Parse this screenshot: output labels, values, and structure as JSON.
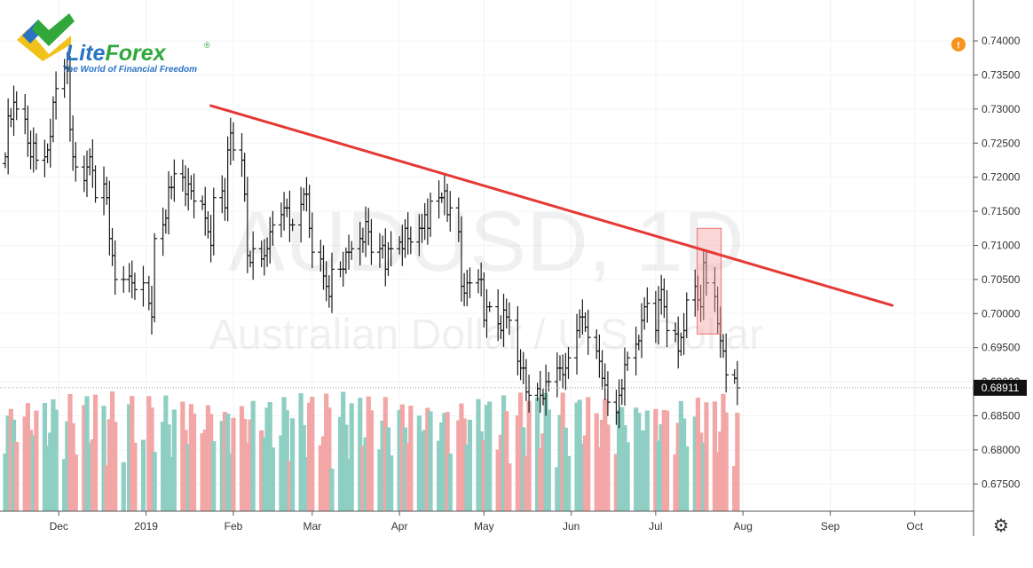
{
  "chart_data": {
    "type": "candlestick",
    "symbol": "AUDUSD, 1D",
    "instrument": "Australian Dollar / U.S. Dollar",
    "brand": {
      "name_part1": "Lite",
      "name_part2": "Forex",
      "registered": "®",
      "tagline": "The World of Financial Freedom",
      "colors": {
        "blue": "#2a73c2",
        "green": "#32a83c",
        "yellow": "#f2c21b"
      }
    },
    "y_axis": {
      "ylim": [
        0.671,
        0.746
      ],
      "ticks": [
        {
          "value": 0.675,
          "label": "0.67500"
        },
        {
          "value": 0.68,
          "label": "0.68000"
        },
        {
          "value": 0.685,
          "label": "0.68500"
        },
        {
          "value": 0.69,
          "label": "0.69000"
        },
        {
          "value": 0.695,
          "label": "0.69500"
        },
        {
          "value": 0.7,
          "label": "0.70000"
        },
        {
          "value": 0.705,
          "label": "0.70500"
        },
        {
          "value": 0.71,
          "label": "0.71000"
        },
        {
          "value": 0.715,
          "label": "0.71500"
        },
        {
          "value": 0.72,
          "label": "0.72000"
        },
        {
          "value": 0.725,
          "label": "0.72500"
        },
        {
          "value": 0.73,
          "label": "0.73000"
        },
        {
          "value": 0.735,
          "label": "0.73500"
        },
        {
          "value": 0.74,
          "label": "0.74000"
        }
      ]
    },
    "x_axis": {
      "ticks": [
        {
          "label": "Dec",
          "date": "2018-12-01"
        },
        {
          "label": "2019",
          "date": "2019-01-01"
        },
        {
          "label": "Feb",
          "date": "2019-02-01"
        },
        {
          "label": "Mar",
          "date": "2019-03-01"
        },
        {
          "label": "Apr",
          "date": "2019-04-01"
        },
        {
          "label": "May",
          "date": "2019-05-01"
        },
        {
          "label": "Jun",
          "date": "2019-06-01"
        },
        {
          "label": "Jul",
          "date": "2019-07-01"
        },
        {
          "label": "Aug",
          "date": "2019-08-01"
        },
        {
          "label": "Sep",
          "date": "2019-09-01"
        },
        {
          "label": "Oct",
          "date": "2019-10-01"
        }
      ],
      "xlim": [
        "2018-11-12",
        "2019-10-20"
      ]
    },
    "last_price": {
      "value": 0.68911,
      "label": "0.68911"
    },
    "trendline": {
      "start": {
        "date": "2019-01-24",
        "price": 0.7305
      },
      "end": {
        "date": "2019-09-23",
        "price": 0.7012
      },
      "color": "#e53935"
    },
    "highlight_box": {
      "start": "2019-07-17",
      "end": "2019-07-23",
      "low": 0.697,
      "high": 0.7125,
      "color": "#f4a4a4"
    },
    "alert_icon": {
      "name": "alert-icon",
      "symbol": "!",
      "color": "#f7931e"
    },
    "settings_icon": {
      "name": "gear-icon",
      "symbol": "⚙"
    },
    "volume_colors": {
      "up": "#8fcfc3",
      "down": "#f2a6a6"
    },
    "price_series": [
      {
        "d": "2018-11-12",
        "c": 0.723
      },
      {
        "d": "2018-11-13",
        "c": 0.729
      },
      {
        "d": "2018-11-14",
        "c": 0.7285
      },
      {
        "d": "2018-11-15",
        "c": 0.731
      },
      {
        "d": "2018-11-16",
        "c": 0.73
      },
      {
        "d": "2018-11-19",
        "c": 0.7285
      },
      {
        "d": "2018-11-20",
        "c": 0.725
      },
      {
        "d": "2018-11-21",
        "c": 0.723
      },
      {
        "d": "2018-11-22",
        "c": 0.725
      },
      {
        "d": "2018-11-23",
        "c": 0.7225
      },
      {
        "d": "2018-11-26",
        "c": 0.723
      },
      {
        "d": "2018-11-27",
        "c": 0.724
      },
      {
        "d": "2018-11-28",
        "c": 0.726
      },
      {
        "d": "2018-11-29",
        "c": 0.731
      },
      {
        "d": "2018-11-30",
        "c": 0.733
      },
      {
        "d": "2018-12-03",
        "c": 0.736
      },
      {
        "d": "2018-12-04",
        "c": 0.736
      },
      {
        "d": "2018-12-05",
        "c": 0.727
      },
      {
        "d": "2018-12-06",
        "c": 0.723
      },
      {
        "d": "2018-12-07",
        "c": 0.7215
      },
      {
        "d": "2018-12-10",
        "c": 0.7195
      },
      {
        "d": "2018-12-11",
        "c": 0.7215
      },
      {
        "d": "2018-12-12",
        "c": 0.723
      },
      {
        "d": "2018-12-13",
        "c": 0.721
      },
      {
        "d": "2018-12-14",
        "c": 0.717
      },
      {
        "d": "2018-12-17",
        "c": 0.719
      },
      {
        "d": "2018-12-18",
        "c": 0.717
      },
      {
        "d": "2018-12-19",
        "c": 0.711
      },
      {
        "d": "2018-12-20",
        "c": 0.7085
      },
      {
        "d": "2018-12-21",
        "c": 0.705
      },
      {
        "d": "2018-12-24",
        "c": 0.705
      },
      {
        "d": "2018-12-26",
        "c": 0.7055
      },
      {
        "d": "2018-12-27",
        "c": 0.7045
      },
      {
        "d": "2018-12-28",
        "c": 0.7035
      },
      {
        "d": "2018-12-31",
        "c": 0.7045
      },
      {
        "d": "2019-01-02",
        "c": 0.7015
      },
      {
        "d": "2019-01-03",
        "c": 0.6995
      },
      {
        "d": "2019-01-04",
        "c": 0.711
      },
      {
        "d": "2019-01-07",
        "c": 0.713
      },
      {
        "d": "2019-01-08",
        "c": 0.714
      },
      {
        "d": "2019-01-09",
        "c": 0.7185
      },
      {
        "d": "2019-01-10",
        "c": 0.7185
      },
      {
        "d": "2019-01-11",
        "c": 0.7205
      },
      {
        "d": "2019-01-14",
        "c": 0.72
      },
      {
        "d": "2019-01-15",
        "c": 0.7175
      },
      {
        "d": "2019-01-16",
        "c": 0.719
      },
      {
        "d": "2019-01-17",
        "c": 0.718
      },
      {
        "d": "2019-01-18",
        "c": 0.7165
      },
      {
        "d": "2019-01-21",
        "c": 0.716
      },
      {
        "d": "2019-01-22",
        "c": 0.714
      },
      {
        "d": "2019-01-23",
        "c": 0.712
      },
      {
        "d": "2019-01-24",
        "c": 0.71
      },
      {
        "d": "2019-01-25",
        "c": 0.717
      },
      {
        "d": "2019-01-28",
        "c": 0.718
      },
      {
        "d": "2019-01-29",
        "c": 0.7155
      },
      {
        "d": "2019-01-30",
        "c": 0.724
      },
      {
        "d": "2019-01-31",
        "c": 0.7265
      },
      {
        "d": "2019-02-01",
        "c": 0.724
      },
      {
        "d": "2019-02-04",
        "c": 0.7225
      },
      {
        "d": "2019-02-05",
        "c": 0.7175
      },
      {
        "d": "2019-02-06",
        "c": 0.7085
      },
      {
        "d": "2019-02-07",
        "c": 0.7075
      },
      {
        "d": "2019-02-08",
        "c": 0.7095
      },
      {
        "d": "2019-02-11",
        "c": 0.708
      },
      {
        "d": "2019-02-12",
        "c": 0.7085
      },
      {
        "d": "2019-02-13",
        "c": 0.7095
      },
      {
        "d": "2019-02-14",
        "c": 0.712
      },
      {
        "d": "2019-02-15",
        "c": 0.713
      },
      {
        "d": "2019-02-18",
        "c": 0.7145
      },
      {
        "d": "2019-02-19",
        "c": 0.7155
      },
      {
        "d": "2019-02-20",
        "c": 0.7155
      },
      {
        "d": "2019-02-21",
        "c": 0.713
      },
      {
        "d": "2019-02-22",
        "c": 0.713
      },
      {
        "d": "2019-02-25",
        "c": 0.716
      },
      {
        "d": "2019-02-26",
        "c": 0.7175
      },
      {
        "d": "2019-02-27",
        "c": 0.7175
      },
      {
        "d": "2019-02-28",
        "c": 0.7125
      },
      {
        "d": "2019-03-01",
        "c": 0.709
      },
      {
        "d": "2019-03-04",
        "c": 0.708
      },
      {
        "d": "2019-03-05",
        "c": 0.7055
      },
      {
        "d": "2019-03-06",
        "c": 0.704
      },
      {
        "d": "2019-03-07",
        "c": 0.7025
      },
      {
        "d": "2019-03-08",
        "c": 0.7065
      },
      {
        "d": "2019-03-11",
        "c": 0.7065
      },
      {
        "d": "2019-03-12",
        "c": 0.7065
      },
      {
        "d": "2019-03-13",
        "c": 0.709
      },
      {
        "d": "2019-03-14",
        "c": 0.709
      },
      {
        "d": "2019-03-15",
        "c": 0.7095
      },
      {
        "d": "2019-03-18",
        "c": 0.711
      },
      {
        "d": "2019-03-19",
        "c": 0.7105
      },
      {
        "d": "2019-03-20",
        "c": 0.7135
      },
      {
        "d": "2019-03-21",
        "c": 0.712
      },
      {
        "d": "2019-03-22",
        "c": 0.709
      },
      {
        "d": "2019-03-25",
        "c": 0.7095
      },
      {
        "d": "2019-03-26",
        "c": 0.71
      },
      {
        "d": "2019-03-27",
        "c": 0.7065
      },
      {
        "d": "2019-03-28",
        "c": 0.7095
      },
      {
        "d": "2019-03-29",
        "c": 0.7095
      },
      {
        "d": "2019-04-01",
        "c": 0.7105
      },
      {
        "d": "2019-04-02",
        "c": 0.7095
      },
      {
        "d": "2019-04-03",
        "c": 0.7125
      },
      {
        "d": "2019-04-04",
        "c": 0.711
      },
      {
        "d": "2019-04-05",
        "c": 0.7105
      },
      {
        "d": "2019-04-08",
        "c": 0.7125
      },
      {
        "d": "2019-04-09",
        "c": 0.7125
      },
      {
        "d": "2019-04-10",
        "c": 0.7145
      },
      {
        "d": "2019-04-11",
        "c": 0.7125
      },
      {
        "d": "2019-04-12",
        "c": 0.7165
      },
      {
        "d": "2019-04-15",
        "c": 0.717
      },
      {
        "d": "2019-04-16",
        "c": 0.717
      },
      {
        "d": "2019-04-17",
        "c": 0.718
      },
      {
        "d": "2019-04-18",
        "c": 0.7145
      },
      {
        "d": "2019-04-19",
        "c": 0.7155
      },
      {
        "d": "2019-04-22",
        "c": 0.712
      },
      {
        "d": "2019-04-23",
        "c": 0.704
      },
      {
        "d": "2019-04-24",
        "c": 0.703
      },
      {
        "d": "2019-04-25",
        "c": 0.7045
      },
      {
        "d": "2019-04-26",
        "c": 0.7045
      },
      {
        "d": "2019-04-29",
        "c": 0.705
      },
      {
        "d": "2019-04-30",
        "c": 0.705
      },
      {
        "d": "2019-05-01",
        "c": 0.699
      },
      {
        "d": "2019-05-02",
        "c": 0.701
      },
      {
        "d": "2019-05-03",
        "c": 0.701
      },
      {
        "d": "2019-05-06",
        "c": 0.6985
      },
      {
        "d": "2019-05-07",
        "c": 0.6975
      },
      {
        "d": "2019-05-08",
        "c": 0.7005
      },
      {
        "d": "2019-05-09",
        "c": 0.6995
      },
      {
        "d": "2019-05-10",
        "c": 0.699
      },
      {
        "d": "2019-05-13",
        "c": 0.693
      },
      {
        "d": "2019-05-14",
        "c": 0.692
      },
      {
        "d": "2019-05-15",
        "c": 0.692
      },
      {
        "d": "2019-05-16",
        "c": 0.6885
      },
      {
        "d": "2019-05-17",
        "c": 0.688
      },
      {
        "d": "2019-05-20",
        "c": 0.689
      },
      {
        "d": "2019-05-21",
        "c": 0.688
      },
      {
        "d": "2019-05-22",
        "c": 0.6875
      },
      {
        "d": "2019-05-23",
        "c": 0.69
      },
      {
        "d": "2019-05-24",
        "c": 0.69
      },
      {
        "d": "2019-05-27",
        "c": 0.692
      },
      {
        "d": "2019-05-28",
        "c": 0.692
      },
      {
        "d": "2019-05-29",
        "c": 0.691
      },
      {
        "d": "2019-05-30",
        "c": 0.692
      },
      {
        "d": "2019-05-31",
        "c": 0.6935
      },
      {
        "d": "2019-06-03",
        "c": 0.6975
      },
      {
        "d": "2019-06-04",
        "c": 0.6995
      },
      {
        "d": "2019-06-05",
        "c": 0.6995
      },
      {
        "d": "2019-06-06",
        "c": 0.698
      },
      {
        "d": "2019-06-07",
        "c": 0.6965
      },
      {
        "d": "2019-06-10",
        "c": 0.6945
      },
      {
        "d": "2019-06-11",
        "c": 0.693
      },
      {
        "d": "2019-06-12",
        "c": 0.6905
      },
      {
        "d": "2019-06-13",
        "c": 0.6895
      },
      {
        "d": "2019-06-14",
        "c": 0.687
      },
      {
        "d": "2019-06-17",
        "c": 0.6855
      },
      {
        "d": "2019-06-18",
        "c": 0.688
      },
      {
        "d": "2019-06-19",
        "c": 0.689
      },
      {
        "d": "2019-06-20",
        "c": 0.6925
      },
      {
        "d": "2019-06-21",
        "c": 0.6935
      },
      {
        "d": "2019-06-24",
        "c": 0.6955
      },
      {
        "d": "2019-06-25",
        "c": 0.696
      },
      {
        "d": "2019-06-26",
        "c": 0.699
      },
      {
        "d": "2019-06-27",
        "c": 0.701
      },
      {
        "d": "2019-06-28",
        "c": 0.7015
      },
      {
        "d": "2019-07-01",
        "c": 0.6975
      },
      {
        "d": "2019-07-02",
        "c": 0.702
      },
      {
        "d": "2019-07-03",
        "c": 0.7035
      },
      {
        "d": "2019-07-04",
        "c": 0.701
      },
      {
        "d": "2019-07-05",
        "c": 0.6975
      },
      {
        "d": "2019-07-08",
        "c": 0.697
      },
      {
        "d": "2019-07-09",
        "c": 0.6945
      },
      {
        "d": "2019-07-10",
        "c": 0.6965
      },
      {
        "d": "2019-07-11",
        "c": 0.6975
      },
      {
        "d": "2019-07-12",
        "c": 0.702
      },
      {
        "d": "2019-07-15",
        "c": 0.704
      },
      {
        "d": "2019-07-16",
        "c": 0.702
      },
      {
        "d": "2019-07-17",
        "c": 0.701
      },
      {
        "d": "2019-07-18",
        "c": 0.7075
      },
      {
        "d": "2019-07-19",
        "c": 0.7045
      },
      {
        "d": "2019-07-22",
        "c": 0.7025
      },
      {
        "d": "2019-07-23",
        "c": 0.6985
      },
      {
        "d": "2019-07-24",
        "c": 0.696
      },
      {
        "d": "2019-07-25",
        "c": 0.6945
      },
      {
        "d": "2019-07-26",
        "c": 0.691
      },
      {
        "d": "2019-07-29",
        "c": 0.6905
      },
      {
        "d": "2019-07-30",
        "c": 0.6891
      }
    ]
  }
}
